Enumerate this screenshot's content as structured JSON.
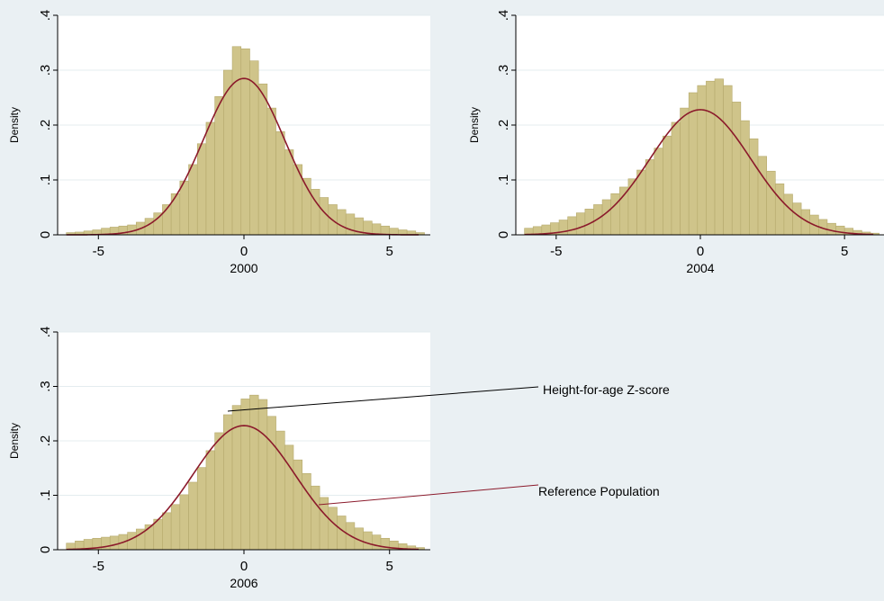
{
  "figure": {
    "background": "#eaf0f3",
    "plot_background": "#ffffff",
    "bar_fill": "#cfc48a",
    "bar_edge": "#b5a96c",
    "curve_color": "#8b1a2b",
    "annotations": [
      "Height-for-age Z-score",
      "Reference Population"
    ]
  },
  "chart_data": [
    {
      "type": "bar",
      "panel": "2000",
      "xlabel": "2000",
      "ylabel": "Density",
      "xlim": [
        -6.4,
        6.4
      ],
      "ylim": [
        0,
        0.4
      ],
      "xticks": [
        -5,
        0,
        5
      ],
      "yticks": [
        0,
        0.1,
        0.2,
        0.3,
        0.4
      ],
      "ytick_labels": [
        "0",
        ".1",
        ".2",
        ".3",
        ".4"
      ],
      "grid": true,
      "bin_width": 0.3,
      "bin_start": -6.1,
      "values": [
        0.004,
        0.005,
        0.007,
        0.009,
        0.012,
        0.014,
        0.016,
        0.018,
        0.023,
        0.03,
        0.04,
        0.055,
        0.075,
        0.098,
        0.128,
        0.166,
        0.205,
        0.252,
        0.3,
        0.343,
        0.339,
        0.317,
        0.275,
        0.231,
        0.188,
        0.155,
        0.128,
        0.103,
        0.083,
        0.068,
        0.055,
        0.046,
        0.038,
        0.031,
        0.025,
        0.02,
        0.016,
        0.012,
        0.009,
        0.007,
        0.004
      ],
      "normal_curve": {
        "mean": 0,
        "sd": 1.4,
        "label": "Reference Population"
      }
    },
    {
      "type": "bar",
      "panel": "2004",
      "xlabel": "2004",
      "ylabel": "Density",
      "xlim": [
        -6.4,
        6.4
      ],
      "ylim": [
        0,
        0.4
      ],
      "xticks": [
        -5,
        0,
        5
      ],
      "yticks": [
        0,
        0.1,
        0.2,
        0.3,
        0.4
      ],
      "ytick_labels": [
        "0",
        ".1",
        ".2",
        ".3",
        ".4"
      ],
      "grid": true,
      "bin_width": 0.3,
      "bin_start": -6.1,
      "values": [
        0.012,
        0.015,
        0.018,
        0.022,
        0.027,
        0.033,
        0.04,
        0.047,
        0.055,
        0.064,
        0.075,
        0.087,
        0.102,
        0.118,
        0.137,
        0.158,
        0.18,
        0.205,
        0.231,
        0.259,
        0.272,
        0.28,
        0.284,
        0.272,
        0.242,
        0.208,
        0.175,
        0.143,
        0.116,
        0.093,
        0.074,
        0.058,
        0.046,
        0.036,
        0.028,
        0.021,
        0.016,
        0.012,
        0.008,
        0.005,
        0.003
      ],
      "normal_curve": {
        "mean": 0,
        "sd": 1.75,
        "label": "Reference Population"
      }
    },
    {
      "type": "bar",
      "panel": "2006",
      "xlabel": "2006",
      "ylabel": "Density",
      "xlim": [
        -6.4,
        6.4
      ],
      "ylim": [
        0,
        0.4
      ],
      "xticks": [
        -5,
        0,
        5
      ],
      "yticks": [
        0,
        0.1,
        0.2,
        0.3,
        0.4
      ],
      "ytick_labels": [
        "0",
        ".1",
        ".2",
        ".3",
        ".4"
      ],
      "grid": true,
      "bin_width": 0.3,
      "bin_start": -6.1,
      "values": [
        0.012,
        0.016,
        0.019,
        0.021,
        0.023,
        0.025,
        0.028,
        0.032,
        0.038,
        0.046,
        0.056,
        0.068,
        0.083,
        0.101,
        0.124,
        0.151,
        0.182,
        0.215,
        0.248,
        0.265,
        0.277,
        0.284,
        0.276,
        0.245,
        0.218,
        0.192,
        0.165,
        0.14,
        0.117,
        0.096,
        0.078,
        0.062,
        0.05,
        0.04,
        0.033,
        0.027,
        0.021,
        0.016,
        0.011,
        0.007,
        0.004
      ],
      "normal_curve": {
        "mean": 0,
        "sd": 1.75,
        "label": "Reference Population"
      }
    }
  ]
}
